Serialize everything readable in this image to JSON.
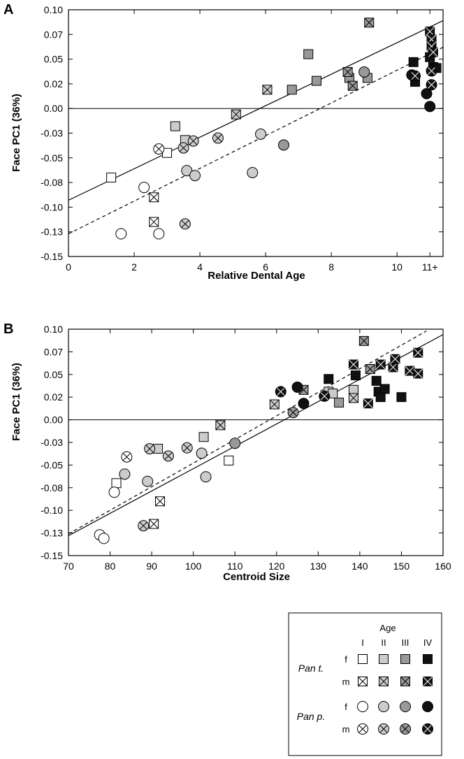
{
  "fill_colors": {
    "I": "#ffffff",
    "II": "#cccccc",
    "III": "#999999",
    "IV": "#111111"
  },
  "chart_data": [
    {
      "type": "scatter",
      "panel": "A",
      "xlabel": "Relative Dental Age",
      "ylabel": "Face PC1 (36%)",
      "xlim": [
        0,
        11.4
      ],
      "ylim": [
        -0.15,
        0.1
      ],
      "x_ticks": [
        0,
        2,
        4,
        6,
        8,
        10,
        11
      ],
      "x_tick_labels": [
        "0",
        "2",
        "4",
        "6",
        "8",
        "10",
        "11+"
      ],
      "y_ticks": [
        -0.15,
        -0.125,
        -0.1,
        -0.075,
        -0.05,
        -0.025,
        0,
        0.025,
        0.05,
        0.075,
        0.1
      ],
      "y_tick_labels": [
        "-0.15",
        "-0.13",
        "-0.10",
        "-0.08",
        "-0.05",
        "-0.03",
        "0.00",
        "0.02",
        "0.05",
        "0.07",
        "0.10"
      ],
      "reference_line_y": 0,
      "fit_lines": [
        {
          "style": "solid",
          "x": [
            0,
            11.4
          ],
          "y": [
            -0.093,
            0.089
          ]
        },
        {
          "style": "dashed",
          "x": [
            0,
            11.4
          ],
          "y": [
            -0.127,
            0.062
          ]
        }
      ],
      "points": [
        {
          "x": 1.3,
          "y": -0.07,
          "species": "Pan t.",
          "sex": "f",
          "age": "I"
        },
        {
          "x": 3.0,
          "y": -0.045,
          "species": "Pan t.",
          "sex": "f",
          "age": "I"
        },
        {
          "x": 3.25,
          "y": -0.018,
          "species": "Pan t.",
          "sex": "f",
          "age": "II"
        },
        {
          "x": 3.55,
          "y": -0.032,
          "species": "Pan t.",
          "sex": "f",
          "age": "II"
        },
        {
          "x": 6.8,
          "y": 0.019,
          "species": "Pan t.",
          "sex": "f",
          "age": "III"
        },
        {
          "x": 7.3,
          "y": 0.055,
          "species": "Pan t.",
          "sex": "f",
          "age": "III"
        },
        {
          "x": 7.55,
          "y": 0.028,
          "species": "Pan t.",
          "sex": "f",
          "age": "III"
        },
        {
          "x": 8.55,
          "y": 0.031,
          "species": "Pan t.",
          "sex": "f",
          "age": "III"
        },
        {
          "x": 9.1,
          "y": 0.031,
          "species": "Pan t.",
          "sex": "f",
          "age": "III"
        },
        {
          "x": 10.5,
          "y": 0.047,
          "species": "Pan t.",
          "sex": "f",
          "age": "IV"
        },
        {
          "x": 10.55,
          "y": 0.027,
          "species": "Pan t.",
          "sex": "f",
          "age": "IV"
        },
        {
          "x": 11.1,
          "y": 0.042,
          "species": "Pan t.",
          "sex": "f",
          "age": "IV"
        },
        {
          "x": 11.2,
          "y": 0.041,
          "species": "Pan t.",
          "sex": "f",
          "age": "IV"
        },
        {
          "x": 11.0,
          "y": 0.052,
          "species": "Pan t.",
          "sex": "f",
          "age": "IV"
        },
        {
          "x": 2.6,
          "y": -0.09,
          "species": "Pan t.",
          "sex": "m",
          "age": "I"
        },
        {
          "x": 2.6,
          "y": -0.115,
          "species": "Pan t.",
          "sex": "m",
          "age": "I"
        },
        {
          "x": 5.1,
          "y": -0.006,
          "species": "Pan t.",
          "sex": "m",
          "age": "II"
        },
        {
          "x": 6.05,
          "y": 0.019,
          "species": "Pan t.",
          "sex": "m",
          "age": "II"
        },
        {
          "x": 8.5,
          "y": 0.037,
          "species": "Pan t.",
          "sex": "m",
          "age": "III"
        },
        {
          "x": 8.65,
          "y": 0.023,
          "species": "Pan t.",
          "sex": "m",
          "age": "III"
        },
        {
          "x": 9.15,
          "y": 0.087,
          "species": "Pan t.",
          "sex": "m",
          "age": "III"
        },
        {
          "x": 11.0,
          "y": 0.078,
          "species": "Pan t.",
          "sex": "m",
          "age": "IV"
        },
        {
          "x": 11.05,
          "y": 0.07,
          "species": "Pan t.",
          "sex": "m",
          "age": "IV"
        },
        {
          "x": 11.05,
          "y": 0.063,
          "species": "Pan t.",
          "sex": "m",
          "age": "IV"
        },
        {
          "x": 11.1,
          "y": 0.057,
          "species": "Pan t.",
          "sex": "m",
          "age": "IV"
        },
        {
          "x": 1.6,
          "y": -0.127,
          "species": "Pan p.",
          "sex": "f",
          "age": "I"
        },
        {
          "x": 2.3,
          "y": -0.08,
          "species": "Pan p.",
          "sex": "f",
          "age": "I"
        },
        {
          "x": 2.75,
          "y": -0.127,
          "species": "Pan p.",
          "sex": "f",
          "age": "I"
        },
        {
          "x": 3.6,
          "y": -0.063,
          "species": "Pan p.",
          "sex": "f",
          "age": "II"
        },
        {
          "x": 3.85,
          "y": -0.068,
          "species": "Pan p.",
          "sex": "f",
          "age": "II"
        },
        {
          "x": 5.6,
          "y": -0.065,
          "species": "Pan p.",
          "sex": "f",
          "age": "II"
        },
        {
          "x": 5.85,
          "y": -0.026,
          "species": "Pan p.",
          "sex": "f",
          "age": "II"
        },
        {
          "x": 6.55,
          "y": -0.037,
          "species": "Pan p.",
          "sex": "f",
          "age": "III"
        },
        {
          "x": 9.0,
          "y": 0.037,
          "species": "Pan p.",
          "sex": "f",
          "age": "III"
        },
        {
          "x": 10.45,
          "y": 0.034,
          "species": "Pan p.",
          "sex": "f",
          "age": "IV"
        },
        {
          "x": 10.9,
          "y": 0.015,
          "species": "Pan p.",
          "sex": "f",
          "age": "IV"
        },
        {
          "x": 11.0,
          "y": 0.002,
          "species": "Pan p.",
          "sex": "f",
          "age": "IV"
        },
        {
          "x": 2.75,
          "y": -0.041,
          "species": "Pan p.",
          "sex": "m",
          "age": "I"
        },
        {
          "x": 3.5,
          "y": -0.04,
          "species": "Pan p.",
          "sex": "m",
          "age": "II"
        },
        {
          "x": 3.55,
          "y": -0.117,
          "species": "Pan p.",
          "sex": "m",
          "age": "II"
        },
        {
          "x": 3.8,
          "y": -0.033,
          "species": "Pan p.",
          "sex": "m",
          "age": "II"
        },
        {
          "x": 4.55,
          "y": -0.03,
          "species": "Pan p.",
          "sex": "m",
          "age": "II"
        },
        {
          "x": 10.55,
          "y": 0.033,
          "species": "Pan p.",
          "sex": "m",
          "age": "IV"
        },
        {
          "x": 11.05,
          "y": 0.038,
          "species": "Pan p.",
          "sex": "m",
          "age": "IV"
        },
        {
          "x": 11.05,
          "y": 0.024,
          "species": "Pan p.",
          "sex": "m",
          "age": "IV"
        }
      ]
    },
    {
      "type": "scatter",
      "panel": "B",
      "xlabel": "Centroid Size",
      "ylabel": "Face PC1 (36%)",
      "xlim": [
        70,
        160
      ],
      "ylim": [
        -0.15,
        0.1
      ],
      "x_ticks": [
        70,
        80,
        90,
        100,
        110,
        120,
        130,
        140,
        150,
        160
      ],
      "x_tick_labels": [
        "70",
        "80",
        "90",
        "100",
        "110",
        "120",
        "130",
        "140",
        "150",
        "160"
      ],
      "y_ticks": [
        -0.15,
        -0.125,
        -0.1,
        -0.075,
        -0.05,
        -0.025,
        0,
        0.025,
        0.05,
        0.075,
        0.1
      ],
      "y_tick_labels": [
        "-0.15",
        "-0.13",
        "-0.10",
        "-0.08",
        "-0.05",
        "-0.03",
        "0.00",
        "0.02",
        "0.05",
        "0.07",
        "0.10"
      ],
      "reference_line_y": 0,
      "fit_lines": [
        {
          "style": "solid",
          "x": [
            70,
            160
          ],
          "y": [
            -0.128,
            0.094
          ]
        },
        {
          "style": "dashed",
          "x": [
            70,
            156
          ],
          "y": [
            -0.126,
            0.098
          ]
        }
      ],
      "points": [
        {
          "x": 81.5,
          "y": -0.07,
          "species": "Pan t.",
          "sex": "f",
          "age": "I"
        },
        {
          "x": 108.5,
          "y": -0.045,
          "species": "Pan t.",
          "sex": "f",
          "age": "I"
        },
        {
          "x": 91.5,
          "y": -0.032,
          "species": "Pan t.",
          "sex": "f",
          "age": "II"
        },
        {
          "x": 102.5,
          "y": -0.019,
          "species": "Pan t.",
          "sex": "f",
          "age": "II"
        },
        {
          "x": 132.5,
          "y": 0.031,
          "species": "Pan t.",
          "sex": "f",
          "age": "II"
        },
        {
          "x": 133.5,
          "y": 0.029,
          "species": "Pan t.",
          "sex": "f",
          "age": "II"
        },
        {
          "x": 138.5,
          "y": 0.033,
          "species": "Pan t.",
          "sex": "f",
          "age": "II"
        },
        {
          "x": 135.0,
          "y": 0.019,
          "species": "Pan t.",
          "sex": "f",
          "age": "III"
        },
        {
          "x": 132.5,
          "y": 0.045,
          "species": "Pan t.",
          "sex": "f",
          "age": "IV"
        },
        {
          "x": 139.0,
          "y": 0.049,
          "species": "Pan t.",
          "sex": "f",
          "age": "IV"
        },
        {
          "x": 144.0,
          "y": 0.043,
          "species": "Pan t.",
          "sex": "f",
          "age": "IV"
        },
        {
          "x": 144.5,
          "y": 0.031,
          "species": "Pan t.",
          "sex": "f",
          "age": "IV"
        },
        {
          "x": 145.0,
          "y": 0.025,
          "species": "Pan t.",
          "sex": "f",
          "age": "IV"
        },
        {
          "x": 146.0,
          "y": 0.034,
          "species": "Pan t.",
          "sex": "f",
          "age": "IV"
        },
        {
          "x": 150.0,
          "y": 0.025,
          "species": "Pan t.",
          "sex": "f",
          "age": "IV"
        },
        {
          "x": 92.0,
          "y": -0.09,
          "species": "Pan t.",
          "sex": "m",
          "age": "I"
        },
        {
          "x": 90.5,
          "y": -0.115,
          "species": "Pan t.",
          "sex": "m",
          "age": "I"
        },
        {
          "x": 106.5,
          "y": -0.006,
          "species": "Pan t.",
          "sex": "m",
          "age": "II"
        },
        {
          "x": 119.5,
          "y": 0.017,
          "species": "Pan t.",
          "sex": "m",
          "age": "II"
        },
        {
          "x": 138.5,
          "y": 0.024,
          "species": "Pan t.",
          "sex": "m",
          "age": "II"
        },
        {
          "x": 126.5,
          "y": 0.033,
          "species": "Pan t.",
          "sex": "m",
          "age": "III"
        },
        {
          "x": 141.0,
          "y": 0.087,
          "species": "Pan t.",
          "sex": "m",
          "age": "III"
        },
        {
          "x": 142.5,
          "y": 0.056,
          "species": "Pan t.",
          "sex": "m",
          "age": "III"
        },
        {
          "x": 138.5,
          "y": 0.061,
          "species": "Pan t.",
          "sex": "m",
          "age": "IV"
        },
        {
          "x": 142.0,
          "y": 0.018,
          "species": "Pan t.",
          "sex": "m",
          "age": "IV"
        },
        {
          "x": 145.0,
          "y": 0.061,
          "species": "Pan t.",
          "sex": "m",
          "age": "IV"
        },
        {
          "x": 148.0,
          "y": 0.058,
          "species": "Pan t.",
          "sex": "m",
          "age": "IV"
        },
        {
          "x": 148.5,
          "y": 0.067,
          "species": "Pan t.",
          "sex": "m",
          "age": "IV"
        },
        {
          "x": 152.0,
          "y": 0.054,
          "species": "Pan t.",
          "sex": "m",
          "age": "IV"
        },
        {
          "x": 154.0,
          "y": 0.074,
          "species": "Pan t.",
          "sex": "m",
          "age": "IV"
        },
        {
          "x": 154.0,
          "y": 0.051,
          "species": "Pan t.",
          "sex": "m",
          "age": "IV"
        },
        {
          "x": 77.5,
          "y": -0.127,
          "species": "Pan p.",
          "sex": "f",
          "age": "I"
        },
        {
          "x": 78.5,
          "y": -0.131,
          "species": "Pan p.",
          "sex": "f",
          "age": "I"
        },
        {
          "x": 81.0,
          "y": -0.08,
          "species": "Pan p.",
          "sex": "f",
          "age": "I"
        },
        {
          "x": 83.5,
          "y": -0.06,
          "species": "Pan p.",
          "sex": "f",
          "age": "II"
        },
        {
          "x": 89.0,
          "y": -0.068,
          "species": "Pan p.",
          "sex": "f",
          "age": "II"
        },
        {
          "x": 102.0,
          "y": -0.037,
          "species": "Pan p.",
          "sex": "f",
          "age": "II"
        },
        {
          "x": 103.0,
          "y": -0.063,
          "species": "Pan p.",
          "sex": "f",
          "age": "II"
        },
        {
          "x": 110.0,
          "y": -0.026,
          "species": "Pan p.",
          "sex": "f",
          "age": "III"
        },
        {
          "x": 125.0,
          "y": 0.036,
          "species": "Pan p.",
          "sex": "f",
          "age": "IV"
        },
        {
          "x": 126.5,
          "y": 0.018,
          "species": "Pan p.",
          "sex": "f",
          "age": "IV"
        },
        {
          "x": 84.0,
          "y": -0.041,
          "species": "Pan p.",
          "sex": "m",
          "age": "I"
        },
        {
          "x": 89.5,
          "y": -0.032,
          "species": "Pan p.",
          "sex": "m",
          "age": "II"
        },
        {
          "x": 94.0,
          "y": -0.04,
          "species": "Pan p.",
          "sex": "m",
          "age": "II"
        },
        {
          "x": 98.5,
          "y": -0.031,
          "species": "Pan p.",
          "sex": "m",
          "age": "II"
        },
        {
          "x": 88.0,
          "y": -0.117,
          "species": "Pan p.",
          "sex": "m",
          "age": "II"
        },
        {
          "x": 124.0,
          "y": 0.008,
          "species": "Pan p.",
          "sex": "m",
          "age": "III"
        },
        {
          "x": 121.0,
          "y": 0.031,
          "species": "Pan p.",
          "sex": "m",
          "age": "IV"
        },
        {
          "x": 131.5,
          "y": 0.026,
          "species": "Pan p.",
          "sex": "m",
          "age": "IV"
        }
      ]
    }
  ],
  "legend": {
    "title": "Age",
    "age_labels": [
      "I",
      "II",
      "III",
      "IV"
    ],
    "rows": [
      {
        "species": "Pan t.",
        "sex": "f",
        "shape": "square",
        "cross": false
      },
      {
        "species": "Pan t.",
        "sex": "m",
        "shape": "square",
        "cross": true
      },
      {
        "species": "Pan p.",
        "sex": "f",
        "shape": "circle",
        "cross": false
      },
      {
        "species": "Pan p.",
        "sex": "m",
        "shape": "circle",
        "cross": true
      }
    ],
    "species_labels": [
      "Pan t.",
      "Pan p."
    ]
  }
}
